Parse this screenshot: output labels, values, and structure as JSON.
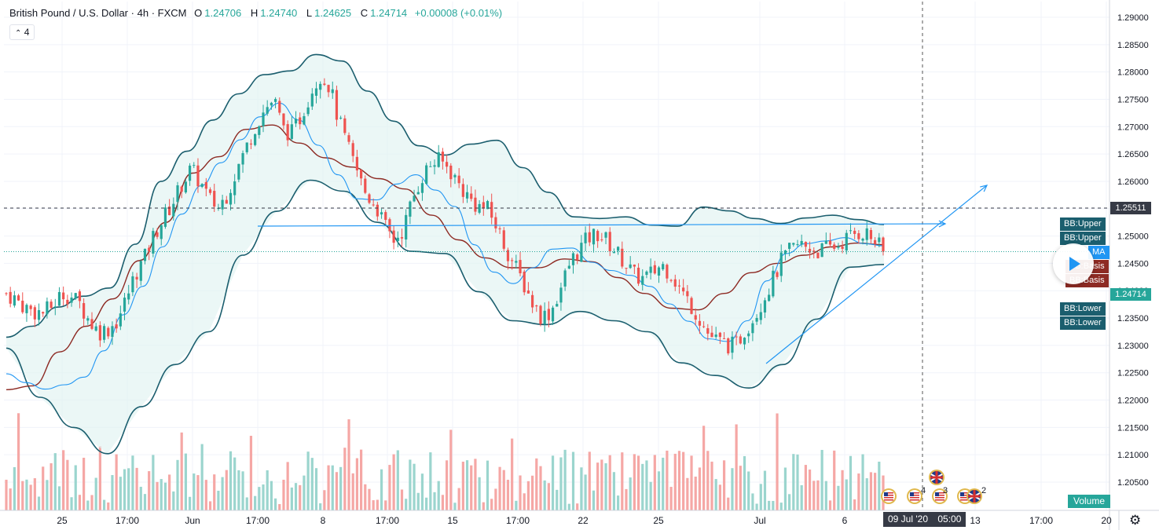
{
  "header": {
    "symbol": "British Pound / U.S. Dollar",
    "interval": "4h",
    "source": "FXCM",
    "open_label": "O",
    "open": "1.24706",
    "high_label": "H",
    "high": "1.24740",
    "low_label": "L",
    "low": "1.24625",
    "close_label": "C",
    "close": "1.24714",
    "change": "+0.00008 (+0.01%)",
    "indicators_toggle": "4"
  },
  "price_axis": {
    "labels": [
      "1.29000",
      "1.28500",
      "1.28000",
      "1.27500",
      "1.27000",
      "1.26500",
      "1.26000",
      "1.25500",
      "1.25000",
      "1.24500",
      "1.24000",
      "1.23500",
      "1.23000",
      "1.22500",
      "1.22000",
      "1.21500",
      "1.21000",
      "1.20500"
    ],
    "marked_level": "1.25511",
    "last_price": "1.24714",
    "study_tags": {
      "bb_upper_1": "BB:Upper",
      "bb_upper_2": "BB:Upper",
      "ma": "MA",
      "bb_basis_1": "BB:Basis",
      "bb_basis_2": "BB:Basis",
      "bb_lower_1": "BB:Lower",
      "bb_lower_2": "BB:Lower"
    },
    "volume_tag": "Volume"
  },
  "time_axis": {
    "labels": [
      "25",
      "17:00",
      "Jun",
      "17:00",
      "8",
      "17:00",
      "15",
      "17:00",
      "22",
      "25",
      "Jul",
      "6",
      "13",
      "17:00",
      "20"
    ],
    "cursor_date": "09 Jul '20",
    "cursor_time": "05:00"
  },
  "events": {
    "badge_counts": [
      "4",
      "3",
      "2"
    ]
  },
  "colors": {
    "up": "#26a69a",
    "down": "#ef5350",
    "bb_band": "#1b5e6e",
    "bb_fill": "#e0f2f1",
    "bb_basis": "#8d2a23",
    "ma": "#2196f3",
    "trendline": "#2196f3",
    "last_price": "#26a69a",
    "marked_level": "#363a45"
  },
  "chart_data": {
    "type": "candlestick",
    "title": "British Pound / U.S. Dollar · 4h · FXCM",
    "ylim": [
      1.2025,
      1.2915
    ],
    "y_ticks": [
      1.205,
      1.21,
      1.215,
      1.22,
      1.225,
      1.23,
      1.235,
      1.24,
      1.245,
      1.25,
      1.255,
      1.26,
      1.265,
      1.27,
      1.275,
      1.28,
      1.285,
      1.29
    ],
    "x_labels": [
      "25",
      "17:00",
      "Jun",
      "17:00",
      "8",
      "17:00",
      "15",
      "17:00",
      "22",
      "25",
      "Jul",
      "6",
      "13",
      "17:00",
      "20"
    ],
    "grid": true,
    "last_close": 1.24714,
    "close_path": [
      1.2395,
      1.2385,
      1.237,
      1.2362,
      1.236,
      1.2372,
      1.2395,
      1.239,
      1.2375,
      1.2345,
      1.2325,
      1.233,
      1.2345,
      1.2385,
      1.2432,
      1.246,
      1.2502,
      1.2532,
      1.256,
      1.2595,
      1.2622,
      1.2598,
      1.2567,
      1.2552,
      1.258,
      1.2622,
      1.2662,
      1.2702,
      1.2732,
      1.275,
      1.2695,
      1.2688,
      1.2722,
      1.2765,
      1.2795,
      1.2775,
      1.2712,
      1.2662,
      1.2618,
      1.2575,
      1.2558,
      1.2518,
      1.2492,
      1.2512,
      1.2567,
      1.2608,
      1.2632,
      1.2638,
      1.2622,
      1.2595,
      1.2572,
      1.2555,
      1.2552,
      1.2522,
      1.2482,
      1.2448,
      1.2415,
      1.2378,
      1.2352,
      1.2362,
      1.2402,
      1.2448,
      1.2475,
      1.2495,
      1.2505,
      1.2492,
      1.2472,
      1.2452,
      1.2428,
      1.2422,
      1.2432,
      1.2448,
      1.2432,
      1.2402,
      1.2378,
      1.2352,
      1.2322,
      1.2308,
      1.2302,
      1.2298,
      1.2328,
      1.2352,
      1.2385,
      1.2418,
      1.2455,
      1.2475,
      1.2485,
      1.2478,
      1.2472,
      1.2478,
      1.2482,
      1.2495,
      1.2505,
      1.2508,
      1.2492,
      1.24714
    ],
    "bollinger_upper": [
      1.2315,
      1.2335,
      1.237,
      1.239,
      1.2405,
      1.2485,
      1.26,
      1.2655,
      1.2712,
      1.276,
      1.2795,
      1.2802,
      1.2832,
      1.282,
      1.2765,
      1.271,
      1.2665,
      1.2648,
      1.2668,
      1.2675,
      1.2625,
      1.258,
      1.2535,
      1.2532,
      1.2535,
      1.252,
      1.2518,
      1.2553,
      1.2546,
      1.2532,
      1.2523,
      1.2533,
      1.2538,
      1.253,
      1.2521
    ],
    "bollinger_basis": [
      1.2219,
      1.2226,
      1.2288,
      1.2335,
      1.2385,
      1.2455,
      1.2525,
      1.2615,
      1.2645,
      1.2695,
      1.2703,
      1.267,
      1.2643,
      1.2626,
      1.2605,
      1.2586,
      1.2538,
      1.2493,
      1.246,
      1.2442,
      1.2442,
      1.2458,
      1.2453,
      1.2424,
      1.2395,
      1.2368,
      1.2365,
      1.2395,
      1.2433,
      1.245,
      1.2465,
      1.248,
      1.2487,
      1.2484
    ],
    "bollinger_lower": [
      1.2295,
      1.2205,
      1.215,
      1.2102,
      1.2188,
      1.2265,
      1.2325,
      1.2465,
      1.2545,
      1.2602,
      1.2582,
      1.2525,
      1.2472,
      1.2468,
      1.2398,
      1.2345,
      1.2338,
      1.2362,
      1.2345,
      1.2325,
      1.2268,
      1.2245,
      1.2222,
      1.2265,
      1.2348,
      1.2443,
      1.2448
    ],
    "moving_average": [
      1.2248,
      1.2232,
      1.222,
      1.2228,
      1.2242,
      1.229,
      1.2356,
      1.2408,
      1.248,
      1.254,
      1.2592,
      1.2634,
      1.2676,
      1.2718,
      1.2743,
      1.2712,
      1.2666,
      1.2612,
      1.2568,
      1.2566,
      1.2595,
      1.2612,
      1.2584,
      1.2554,
      1.2484,
      1.2434,
      1.2413,
      1.2442,
      1.2476,
      1.2478,
      1.2452,
      1.2437,
      1.2428,
      1.2408,
      1.2376,
      1.2344,
      1.2312,
      1.2307,
      1.2345,
      1.2418,
      1.2468,
      1.2486,
      1.2491,
      1.2497,
      1.2486,
      1.2482
    ],
    "horizontal_level": 1.25511,
    "trendlines": [
      {
        "from": [
          "Jun 1 12:00",
          1.252
        ],
        "to": [
          "Jul 9 04:00",
          1.2521
        ]
      },
      {
        "from": [
          "Jun 30 20:00",
          1.2265
        ],
        "to": [
          "Jul 9 12:00",
          1.2592
        ]
      }
    ],
    "volume": {
      "max_visible": 1,
      "series": "Volume"
    }
  }
}
